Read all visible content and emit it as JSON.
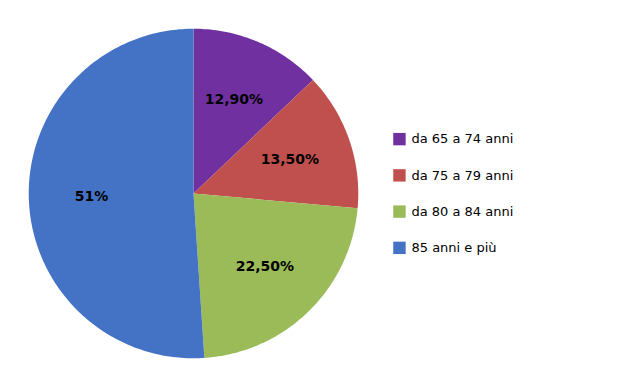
{
  "chart_data": {
    "type": "pie",
    "categories": [
      "da 65 a 74 anni",
      "da 75 a 79 anni",
      "da 80 a 84 anni",
      "85 anni e più"
    ],
    "values": [
      12.9,
      13.5,
      22.5,
      51.0
    ],
    "value_labels": [
      "12,90%",
      "13,50%",
      "22,50%",
      "51%"
    ],
    "colors": [
      "#7030A0",
      "#C0504D",
      "#9BBB59",
      "#4472C4"
    ],
    "data_labels": true,
    "legend": "right"
  }
}
